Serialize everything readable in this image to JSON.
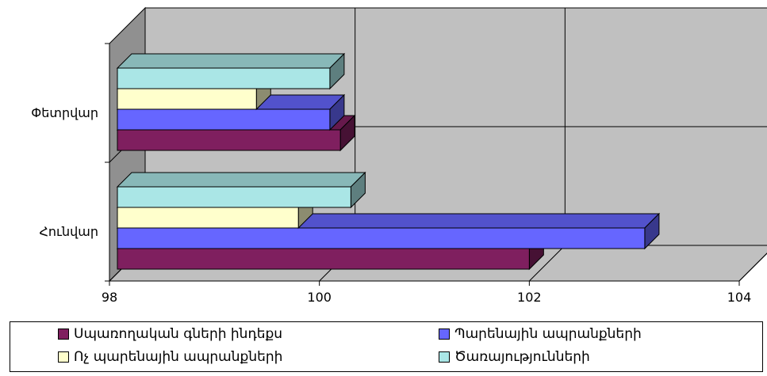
{
  "chart_data": {
    "type": "bar",
    "orientation": "horizontal",
    "style": "3d-clustered",
    "categories": [
      "Փետրվար",
      "Հունվար"
    ],
    "series": [
      {
        "name": "Սպառողական գների ինդեքս",
        "color": "#7f1f5f",
        "values": [
          100.2,
          102.0
        ]
      },
      {
        "name": "Պարենային ապրանքների",
        "color": "#6666ff",
        "values": [
          100.1,
          103.1
        ]
      },
      {
        "name": "Ոչ պարենային ապրանքների",
        "color": "#ffffcc",
        "values": [
          99.4,
          99.8
        ]
      },
      {
        "name": "Ծառայությունների",
        "color": "#aae6e6",
        "values": [
          100.1,
          100.3
        ]
      }
    ],
    "xlim": [
      98,
      104
    ],
    "xticks": [
      "98",
      "100",
      "102",
      "104"
    ],
    "grid": true,
    "legend_position": "bottom"
  }
}
